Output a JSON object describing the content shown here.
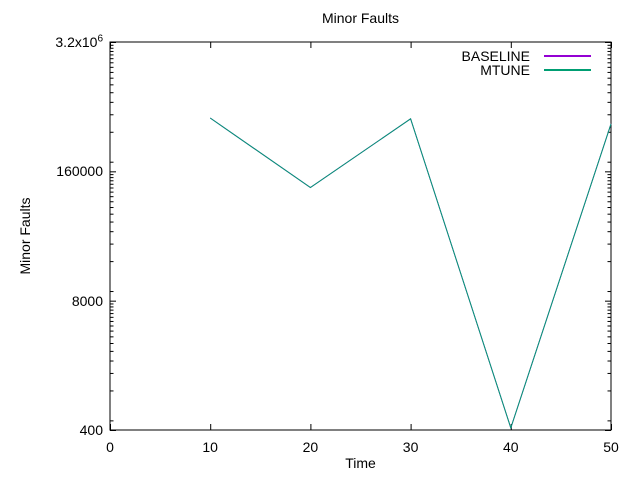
{
  "figure": {
    "background": "#ffffff",
    "text_color": "#000000",
    "axis_color": "#000000"
  },
  "chart_data": {
    "type": "line",
    "title": "Minor Faults",
    "xlabel": "Time",
    "ylabel": "Minor Faults",
    "x_scale": "linear",
    "y_scale": "log",
    "xlim": [
      0,
      50
    ],
    "ylim": [
      400,
      3200000
    ],
    "grid": false,
    "legend_position": "top-right",
    "x_ticks": [
      {
        "value": 0,
        "label": "0"
      },
      {
        "value": 10,
        "label": "10"
      },
      {
        "value": 20,
        "label": "20"
      },
      {
        "value": 30,
        "label": "30"
      },
      {
        "value": 40,
        "label": "40"
      },
      {
        "value": 50,
        "label": "50"
      }
    ],
    "y_ticks": [
      {
        "value": 400,
        "label": "400"
      },
      {
        "value": 8000,
        "label": "8000"
      },
      {
        "value": 160000,
        "label": "160000"
      },
      {
        "value": 3200000,
        "label": "3.2x10",
        "sup": "6"
      }
    ],
    "x": [
      10,
      20,
      30,
      40,
      50
    ],
    "series": [
      {
        "name": "BASELINE",
        "color": "#9400d3",
        "values": [
          550000,
          110000,
          540000,
          420,
          480000
        ]
      },
      {
        "name": "MTUNE",
        "color": "#009e73",
        "values": [
          550000,
          110000,
          540000,
          420,
          480000
        ]
      }
    ]
  }
}
